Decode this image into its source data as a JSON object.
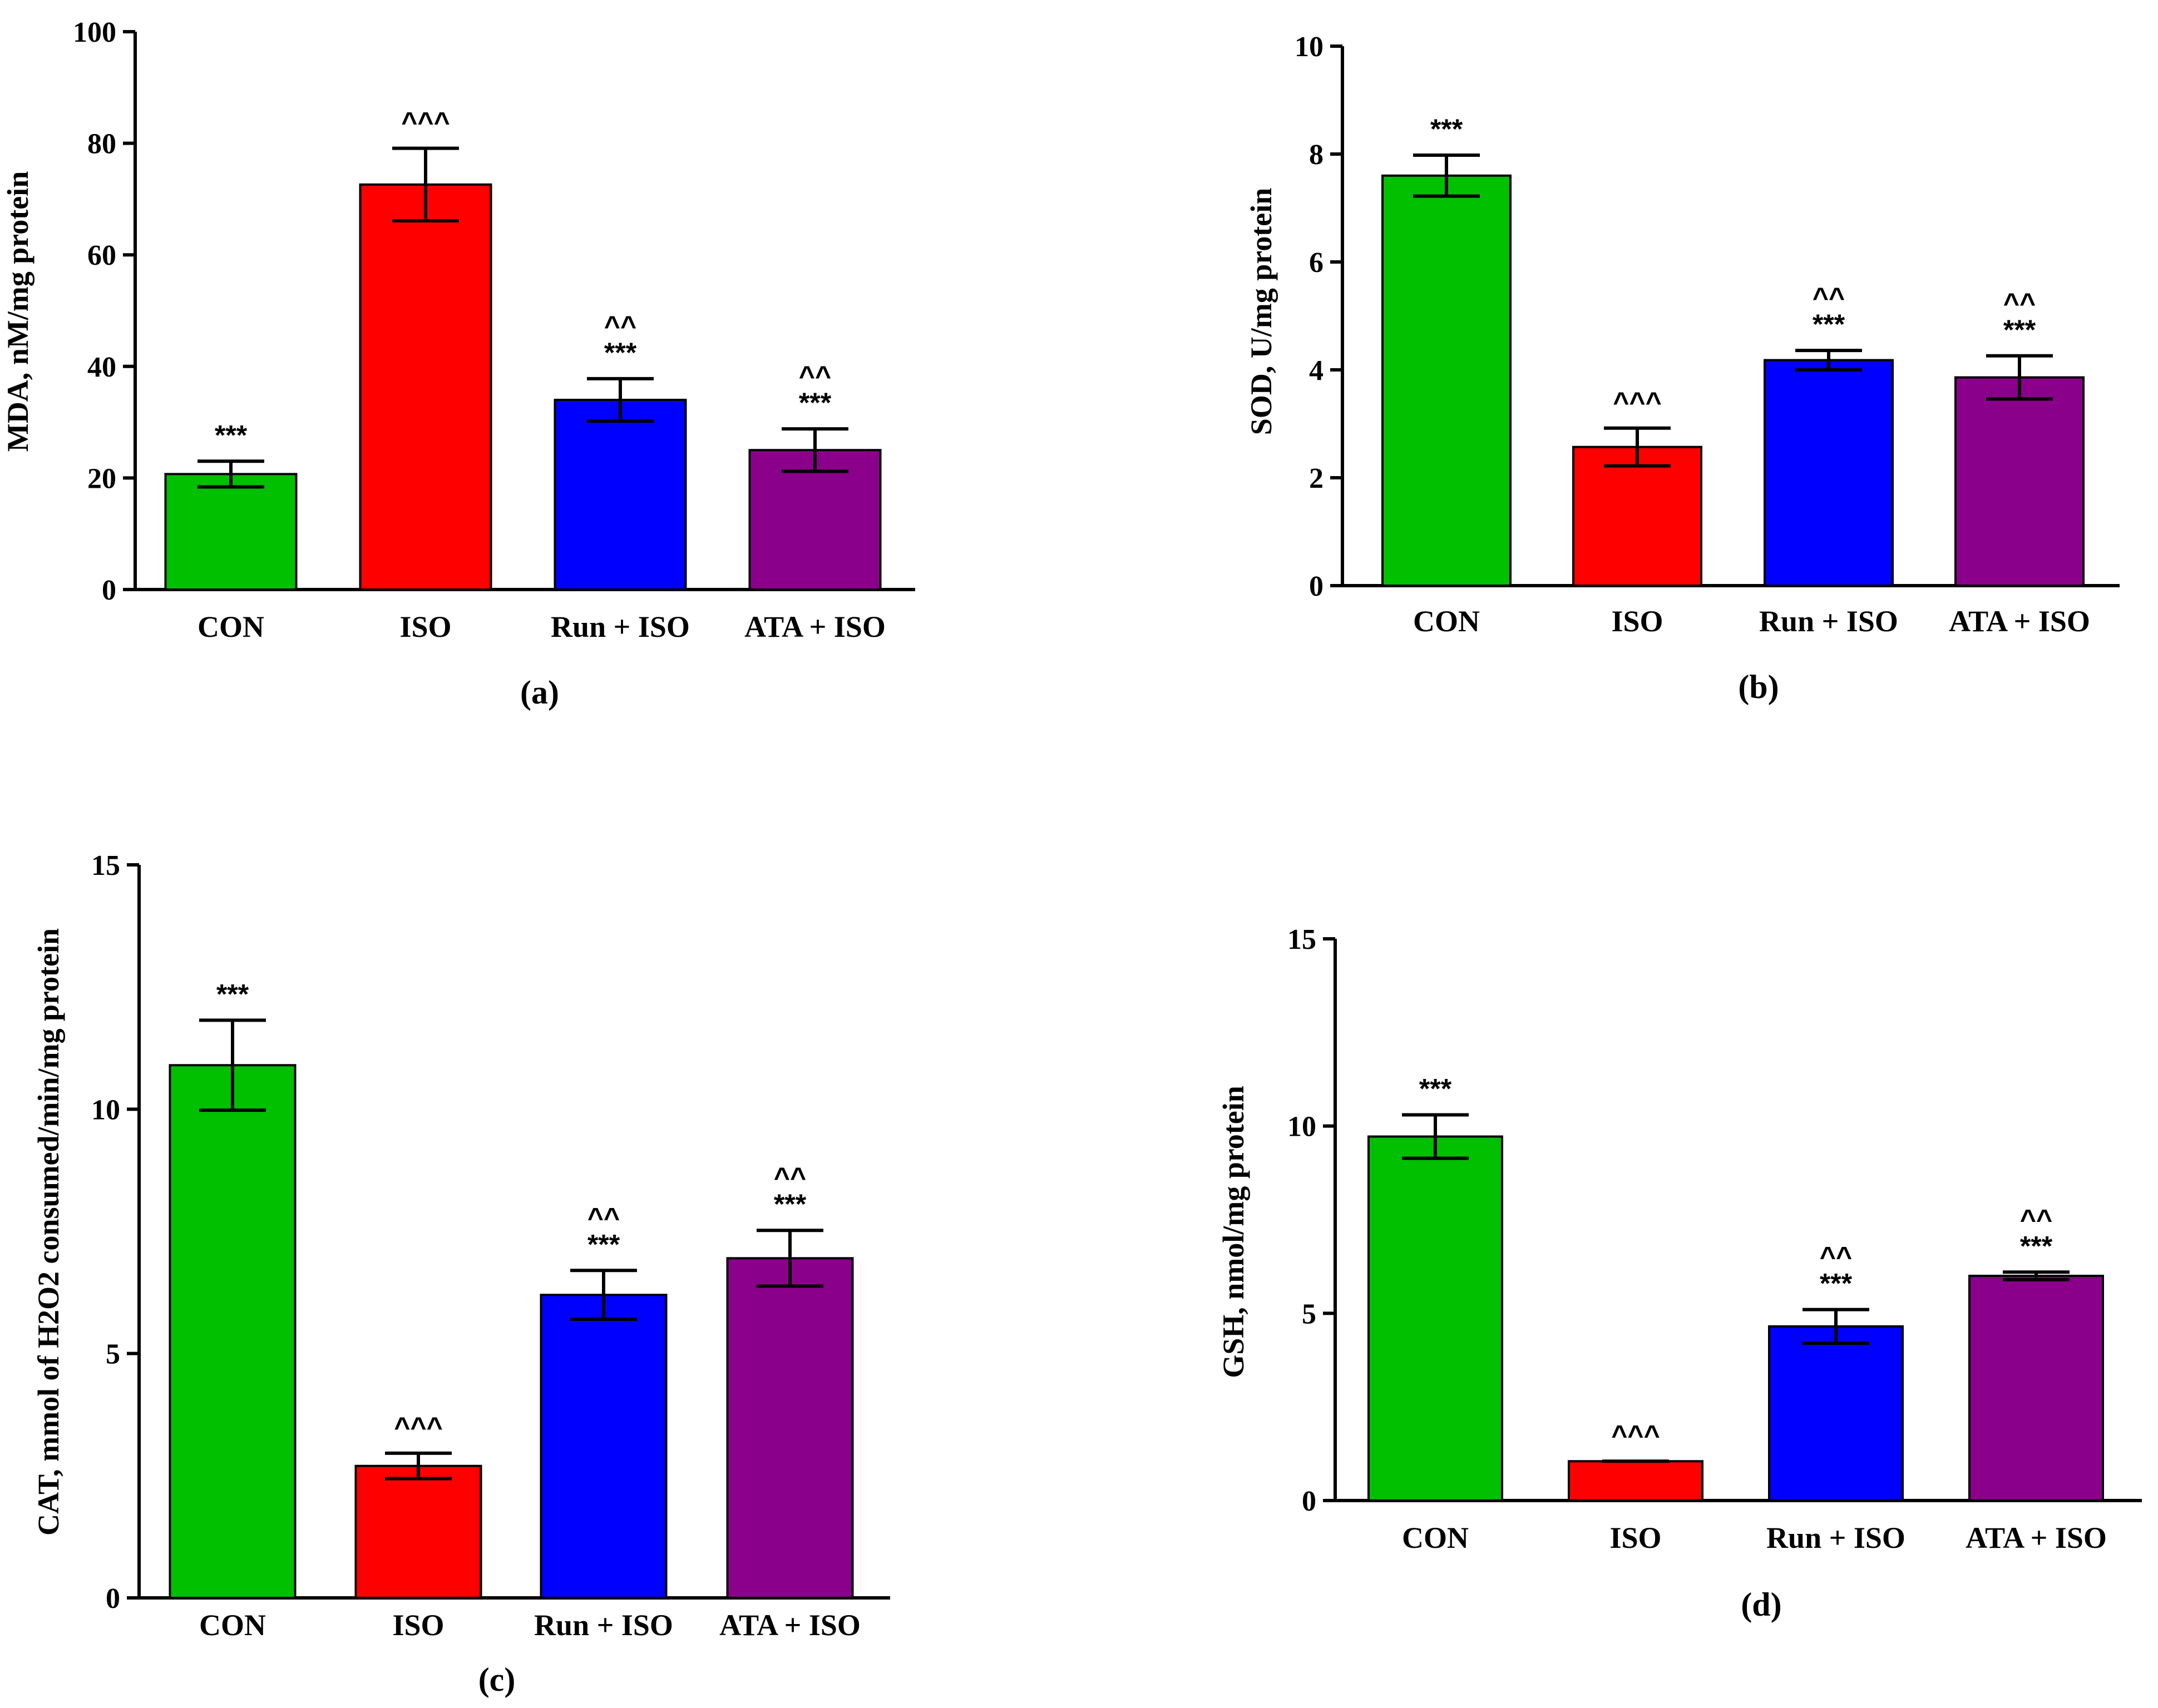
{
  "colors": {
    "CON": "#00c000",
    "ISO": "#ff0000",
    "Run + ISO": "#0000ff",
    "ATA + ISO": "#8b008b"
  },
  "chart_data": [
    {
      "type": "bar",
      "panel_label": "(a)",
      "ylabel": "MDA, nM/mg protein",
      "ylim": [
        0,
        100
      ],
      "yticks": [
        0,
        20,
        40,
        60,
        80,
        100
      ],
      "categories": [
        "CON",
        "ISO",
        "Run + ISO",
        "ATA + ISO"
      ],
      "values": [
        20.7,
        72.6,
        34.0,
        25.0
      ],
      "errors": [
        2.3,
        6.5,
        3.8,
        3.8
      ],
      "significance": [
        [
          "***"
        ],
        [
          "^^^"
        ],
        [
          "^^",
          "***"
        ],
        [
          "^^",
          "***"
        ]
      ]
    },
    {
      "type": "bar",
      "panel_label": "(b)",
      "ylabel": "SOD, U/mg protein",
      "ylim": [
        0,
        10
      ],
      "yticks": [
        0,
        2,
        4,
        6,
        8,
        10
      ],
      "categories": [
        "CON",
        "ISO",
        "Run + ISO",
        "ATA + ISO"
      ],
      "values": [
        7.6,
        2.57,
        4.18,
        3.86
      ],
      "errors": [
        0.38,
        0.35,
        0.18,
        0.4
      ],
      "significance": [
        [
          "***"
        ],
        [
          "^^^"
        ],
        [
          "^^",
          "***"
        ],
        [
          "^^",
          "***"
        ]
      ]
    },
    {
      "type": "bar",
      "panel_label": "(c)",
      "ylabel": "CAT, mmol of H2O2 consumed/min/mg protein",
      "ylim": [
        0,
        15
      ],
      "yticks": [
        0,
        5,
        10,
        15
      ],
      "categories": [
        "CON",
        "ISO",
        "Run + ISO",
        "ATA + ISO"
      ],
      "values": [
        10.9,
        2.7,
        6.2,
        6.95
      ],
      "errors": [
        0.92,
        0.26,
        0.5,
        0.57
      ],
      "significance": [
        [
          "***"
        ],
        [
          "^^^"
        ],
        [
          "^^",
          "***"
        ],
        [
          "^^",
          "***"
        ]
      ]
    },
    {
      "type": "bar",
      "panel_label": "(d)",
      "ylabel": "GSH, nmol/mg protein",
      "ylim": [
        0,
        15
      ],
      "yticks": [
        0,
        5,
        10,
        15
      ],
      "categories": [
        "CON",
        "ISO",
        "Run + ISO",
        "ATA + ISO"
      ],
      "values": [
        9.72,
        1.05,
        4.65,
        6.0
      ],
      "errors": [
        0.58,
        0.0,
        0.45,
        0.1
      ],
      "significance": [
        [
          "***"
        ],
        [
          "^^^"
        ],
        [
          "^^",
          "***"
        ],
        [
          "^^",
          "***"
        ]
      ]
    }
  ]
}
